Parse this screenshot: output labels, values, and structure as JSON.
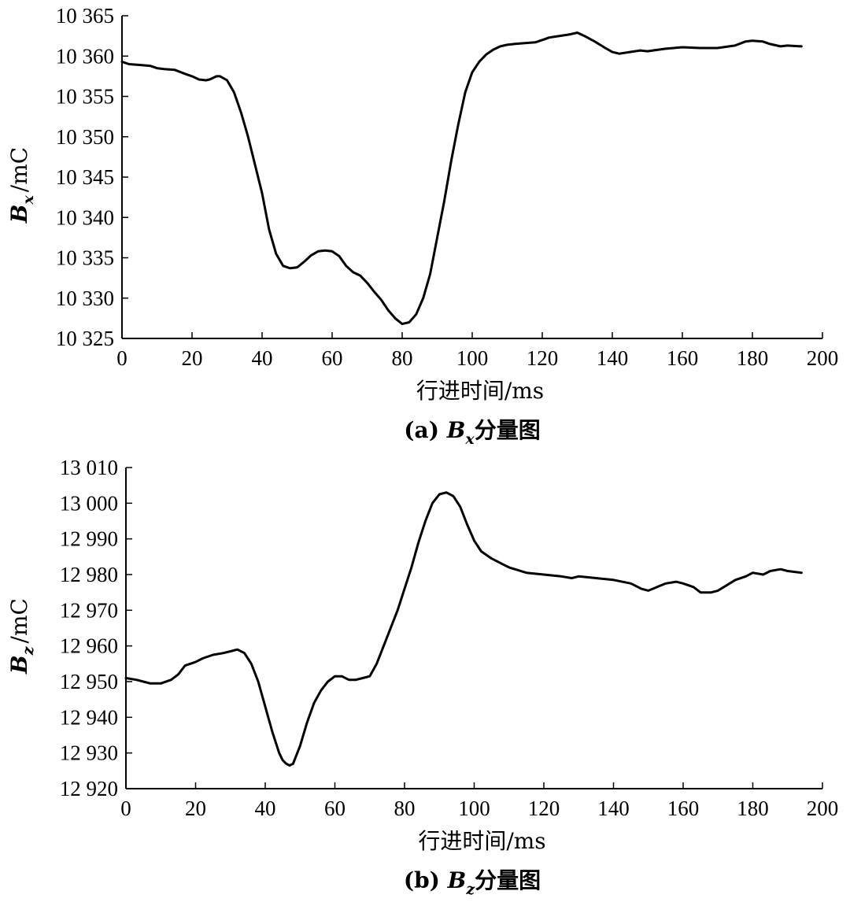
{
  "chart_data": [
    {
      "type": "line",
      "caption": {
        "prefix": "(a) ",
        "symbol": "B",
        "sub": "x",
        "suffix": "分量图"
      },
      "ylabel": {
        "symbol": "B",
        "sub": "x",
        "unit": "/mC"
      },
      "xlabel": "行进时间/ms",
      "xlim": [
        0,
        200
      ],
      "ylim": [
        10325,
        10365
      ],
      "xticks": [
        0,
        20,
        40,
        60,
        80,
        100,
        120,
        140,
        160,
        180,
        200
      ],
      "yticks": [
        10325,
        10330,
        10335,
        10340,
        10345,
        10350,
        10355,
        10360,
        10365
      ],
      "xtick_labels": [
        "0",
        "20",
        "40",
        "60",
        "80",
        "100",
        "120",
        "140",
        "160",
        "180",
        "200"
      ],
      "ytick_labels": [
        "10 325",
        "10 330",
        "10 335",
        "10 340",
        "10 345",
        "10 350",
        "10 355",
        "10 360",
        "10 365"
      ],
      "series": [
        {
          "x": [
            0,
            2,
            5,
            8,
            10,
            12,
            15,
            18,
            20,
            22,
            24,
            25,
            27,
            28,
            30,
            32,
            34,
            36,
            38,
            40,
            42,
            44,
            46,
            48,
            50,
            52,
            54,
            56,
            58,
            60,
            62,
            64,
            66,
            68,
            70,
            72,
            74,
            76,
            78,
            80,
            82,
            84,
            86,
            88,
            90,
            92,
            94,
            96,
            98,
            100,
            102,
            104,
            106,
            108,
            110,
            112,
            115,
            118,
            120,
            122,
            125,
            128,
            130,
            132,
            135,
            138,
            140,
            142,
            145,
            148,
            150,
            155,
            160,
            165,
            170,
            175,
            178,
            180,
            183,
            185,
            188,
            190,
            194
          ],
          "values": [
            10359.3,
            10359.0,
            10358.9,
            10358.8,
            10358.5,
            10358.4,
            10358.3,
            10357.8,
            10357.5,
            10357.1,
            10357.0,
            10357.1,
            10357.5,
            10357.5,
            10357.0,
            10355.5,
            10353.0,
            10350.0,
            10346.5,
            10343.0,
            10338.5,
            10335.5,
            10334.0,
            10333.7,
            10333.8,
            10334.5,
            10335.3,
            10335.8,
            10335.9,
            10335.8,
            10335.2,
            10334.0,
            10333.2,
            10332.8,
            10331.9,
            10330.8,
            10329.8,
            10328.5,
            10327.5,
            10326.8,
            10327.0,
            10328.0,
            10330.0,
            10333.0,
            10337.5,
            10342.0,
            10347.0,
            10351.5,
            10355.5,
            10358.0,
            10359.3,
            10360.2,
            10360.8,
            10361.2,
            10361.4,
            10361.5,
            10361.6,
            10361.7,
            10362.0,
            10362.3,
            10362.5,
            10362.7,
            10362.9,
            10362.5,
            10361.8,
            10361.0,
            10360.5,
            10360.3,
            10360.5,
            10360.7,
            10360.6,
            10360.9,
            10361.1,
            10361.0,
            10361.0,
            10361.3,
            10361.8,
            10361.9,
            10361.8,
            10361.5,
            10361.2,
            10361.3,
            10361.2
          ]
        }
      ]
    },
    {
      "type": "line",
      "caption": {
        "prefix": "(b) ",
        "symbol": "B",
        "sub": "z",
        "suffix": "分量图"
      },
      "ylabel": {
        "symbol": "B",
        "sub": "z",
        "unit": "/mC"
      },
      "xlabel": "行进时间/ms",
      "xlim": [
        0,
        200
      ],
      "ylim": [
        12920,
        13010
      ],
      "xticks": [
        0,
        20,
        40,
        60,
        80,
        100,
        120,
        140,
        160,
        180,
        200
      ],
      "yticks": [
        12920,
        12930,
        12940,
        12950,
        12960,
        12970,
        12980,
        12990,
        13000,
        13010
      ],
      "xtick_labels": [
        "0",
        "20",
        "40",
        "60",
        "80",
        "100",
        "120",
        "140",
        "160",
        "180",
        "200"
      ],
      "ytick_labels": [
        "12 920",
        "12 930",
        "12 940",
        "12 950",
        "12 960",
        "12 970",
        "12 980",
        "12 990",
        "13 000",
        "13 010"
      ],
      "series": [
        {
          "x": [
            0,
            3,
            5,
            7,
            10,
            13,
            15,
            17,
            20,
            22,
            25,
            28,
            30,
            32,
            34,
            36,
            38,
            40,
            42,
            44,
            45,
            46,
            47,
            48,
            50,
            52,
            54,
            56,
            58,
            60,
            62,
            64,
            66,
            68,
            70,
            72,
            75,
            78,
            80,
            82,
            84,
            86,
            88,
            90,
            92,
            94,
            96,
            98,
            100,
            102,
            105,
            108,
            110,
            115,
            120,
            125,
            128,
            130,
            135,
            140,
            145,
            148,
            150,
            155,
            158,
            160,
            163,
            165,
            168,
            170,
            175,
            178,
            180,
            183,
            185,
            188,
            190,
            194
          ],
          "values": [
            12951.0,
            12950.5,
            12950.0,
            12949.5,
            12949.5,
            12950.5,
            12952.0,
            12954.5,
            12955.5,
            12956.5,
            12957.5,
            12958.0,
            12958.5,
            12959.0,
            12958.0,
            12955.0,
            12950.0,
            12943.0,
            12936.0,
            12930.0,
            12928.0,
            12927.0,
            12926.5,
            12927.0,
            12932.0,
            12938.5,
            12944.0,
            12947.5,
            12950.0,
            12951.5,
            12951.5,
            12950.5,
            12950.5,
            12951.0,
            12951.5,
            12955.0,
            12962.5,
            12970.0,
            12976.0,
            12982.0,
            12989.0,
            12995.0,
            13000.0,
            13002.5,
            13003.0,
            13002.0,
            12999.0,
            12994.0,
            12989.5,
            12986.5,
            12984.5,
            12983.0,
            12982.0,
            12980.5,
            12980.0,
            12979.5,
            12979.0,
            12979.5,
            12979.0,
            12978.5,
            12977.5,
            12976.0,
            12975.5,
            12977.5,
            12978.0,
            12977.5,
            12976.5,
            12975.0,
            12975.0,
            12975.5,
            12978.5,
            12979.5,
            12980.5,
            12980.0,
            12981.0,
            12981.5,
            12981.0,
            12980.5
          ]
        }
      ]
    }
  ]
}
